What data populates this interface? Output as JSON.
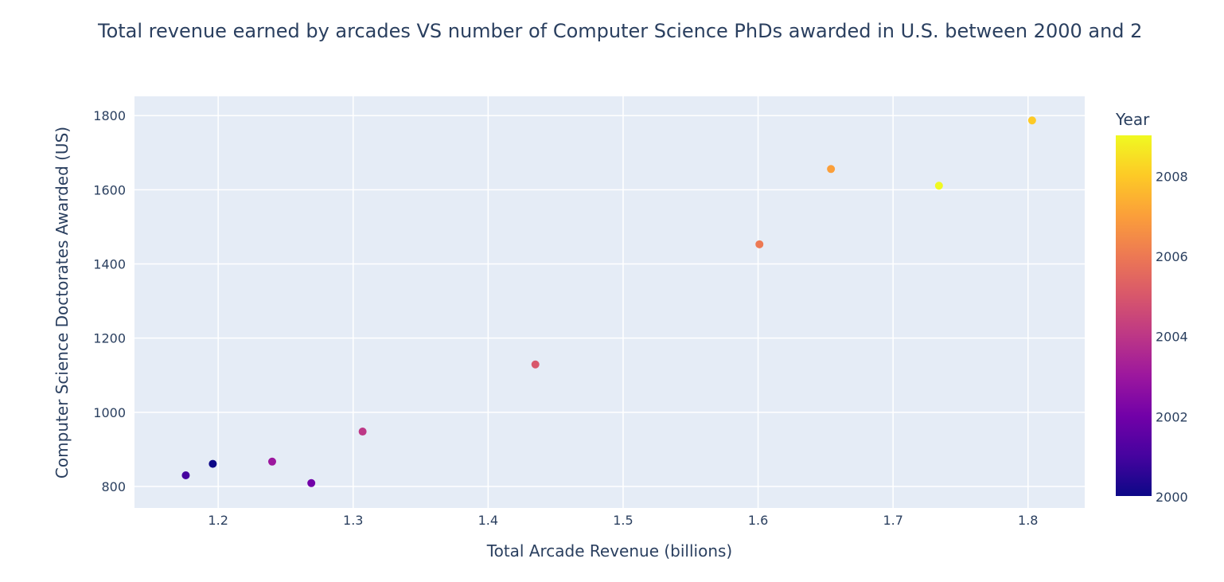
{
  "chart_data": {
    "type": "scatter",
    "title": "Total revenue earned by arcades VS number of Computer Science PhDs awarded in U.S. between 2000 and 2",
    "xlabel": "Total Arcade Revenue (billions)",
    "ylabel": "Computer Science Doctorates Awarded (US)",
    "xlim": [
      1.138,
      1.842
    ],
    "ylim": [
      742,
      1852
    ],
    "x_ticks": [
      1.2,
      1.3,
      1.4,
      1.5,
      1.6,
      1.7,
      1.8
    ],
    "y_ticks": [
      800,
      1000,
      1200,
      1400,
      1600,
      1800
    ],
    "grid": true,
    "colorbar": {
      "title": "Year",
      "range": [
        2000,
        2009
      ],
      "ticks": [
        2000,
        2002,
        2004,
        2006,
        2008
      ],
      "colorscale": [
        "#0d0887",
        "#46039f",
        "#7201a8",
        "#9c179e",
        "#bd3786",
        "#d8576b",
        "#ed7953",
        "#fb9f3a",
        "#fdca26",
        "#f0f921"
      ]
    },
    "points": [
      {
        "x": 1.196,
        "y": 861,
        "year": 2000
      },
      {
        "x": 1.176,
        "y": 830,
        "year": 2001
      },
      {
        "x": 1.269,
        "y": 809,
        "year": 2002
      },
      {
        "x": 1.24,
        "y": 867,
        "year": 2003
      },
      {
        "x": 1.307,
        "y": 948,
        "year": 2004
      },
      {
        "x": 1.435,
        "y": 1129,
        "year": 2005
      },
      {
        "x": 1.601,
        "y": 1453,
        "year": 2006
      },
      {
        "x": 1.654,
        "y": 1656,
        "year": 2007
      },
      {
        "x": 1.803,
        "y": 1787,
        "year": 2008
      },
      {
        "x": 1.734,
        "y": 1611,
        "year": 2009
      }
    ]
  },
  "colors": {
    "plot_bg": "#e5ecf6",
    "grid": "#ffffff",
    "text": "#2a3f5f"
  }
}
